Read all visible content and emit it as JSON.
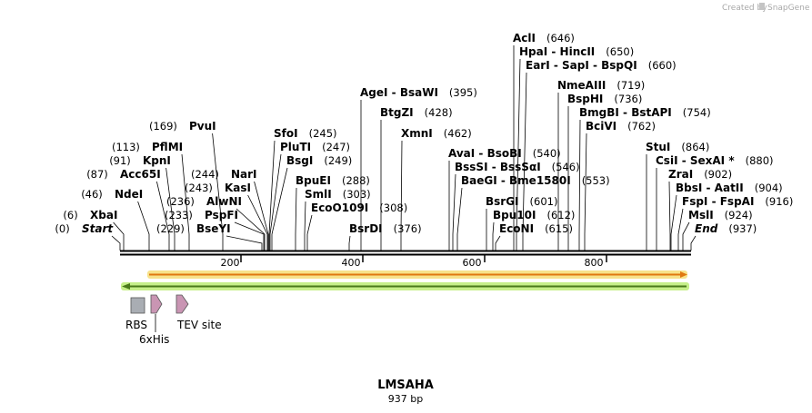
{
  "branding": {
    "created_by": "Created by",
    "app_name": "SnapGene"
  },
  "sequence": {
    "name": "LMSAHA",
    "length_label": "937 bp",
    "length": 937
  },
  "ruler": {
    "ticks": [
      "200",
      "400",
      "600",
      "800"
    ]
  },
  "colors": {
    "backbone": "#000000",
    "forward_arrow": "#e07810",
    "forward_glow": "#f7e28a",
    "reverse_arrow": "#4a7a1a",
    "reverse_glow": "#c6ef8a",
    "rbs": "#a9adb3",
    "tag": "#c995b3"
  },
  "features": [
    {
      "name": "RBS",
      "shape": "box"
    },
    {
      "name": "6xHis",
      "shape": "arrow"
    },
    {
      "name": "TEV site",
      "shape": "arrow"
    }
  ],
  "sites": [
    {
      "name": "XbaI",
      "pos": "(6)",
      "pos_first": true
    },
    {
      "name": "Start",
      "pos": "(0)",
      "pos_first": true,
      "italic": true
    },
    {
      "name": "NdeI",
      "pos": "(46)",
      "pos_first": true
    },
    {
      "name": "Acc65I",
      "pos": "(87)",
      "pos_first": true
    },
    {
      "name": "KpnI",
      "pos": "(91)",
      "pos_first": true
    },
    {
      "name": "PflMI",
      "pos": "(113)",
      "pos_first": true
    },
    {
      "name": "PvuI",
      "pos": "(169)",
      "pos_first": true
    },
    {
      "name": "BseYI",
      "pos": "(229)",
      "pos_first": true
    },
    {
      "name": "PspFI",
      "pos": "(233)",
      "pos_first": true
    },
    {
      "name": "AlwNI",
      "pos": "(236)",
      "pos_first": true
    },
    {
      "name": "KasI",
      "pos": "(243)",
      "pos_first": true
    },
    {
      "name": "NarI",
      "pos": "(244)",
      "pos_first": true
    },
    {
      "name": "SfoI",
      "pos": "(245)"
    },
    {
      "name": "PluTI",
      "pos": "(247)"
    },
    {
      "name": "BsgI",
      "pos": "(249)"
    },
    {
      "name": "BpuEI",
      "pos": "(288)"
    },
    {
      "name": "SmlI",
      "pos": "(303)"
    },
    {
      "name": "EcoO109I",
      "pos": "(308)"
    },
    {
      "name": "BsrDI",
      "pos": "(376)"
    },
    {
      "name": "AgeI  -  BsaWI",
      "pos": "(395)"
    },
    {
      "name": "BtgZI",
      "pos": "(428)"
    },
    {
      "name": "XmnI",
      "pos": "(462)"
    },
    {
      "name": "AvaI  -  BsoBI",
      "pos": "(540)"
    },
    {
      "name": "BssSI  -  BssSαI",
      "pos": "(546)"
    },
    {
      "name": "BaeGI  -  Bme1580I",
      "pos": "(553)"
    },
    {
      "name": "BsrGI",
      "pos": "(601)"
    },
    {
      "name": "Bpu10I",
      "pos": "(612)"
    },
    {
      "name": "EcoNI",
      "pos": "(615)"
    },
    {
      "name": "AclI",
      "pos": "(646)"
    },
    {
      "name": "HpaI  -  HincII",
      "pos": "(650)"
    },
    {
      "name": "EarI  -  SapI  -  BspQI",
      "pos": "(660)"
    },
    {
      "name": "NmeAIII",
      "pos": "(719)"
    },
    {
      "name": "BspHI",
      "pos": "(736)"
    },
    {
      "name": "BmgBI  -  BstAPI",
      "pos": "(754)"
    },
    {
      "name": "BciVI",
      "pos": "(762)"
    },
    {
      "name": "StuI",
      "pos": "(864)"
    },
    {
      "name": "CsiI  -  SexAI *",
      "pos": "(880)"
    },
    {
      "name": "ZraI",
      "pos": "(902)"
    },
    {
      "name": "BbsI  -  AatII",
      "pos": "(904)"
    },
    {
      "name": "FspI  -  FspAI",
      "pos": "(916)"
    },
    {
      "name": "MslI",
      "pos": "(924)"
    },
    {
      "name": "End",
      "pos": "(937)",
      "italic": true
    }
  ]
}
